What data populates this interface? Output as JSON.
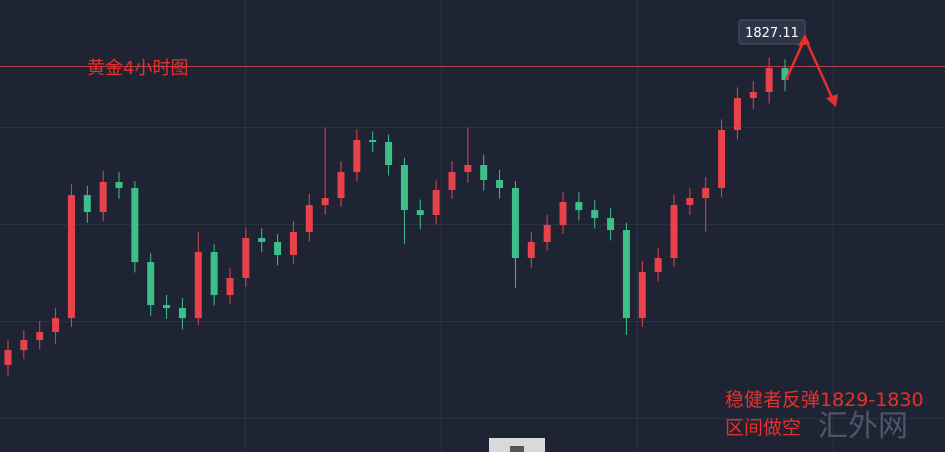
{
  "chart_data": {
    "type": "candlestick",
    "title": "黄金4小时图",
    "open": [
      1789.85,
      1791.72,
      1792.97,
      1793.97,
      1795.71,
      1811.06,
      1808.94,
      1812.69,
      1811.94,
      1802.7,
      1797.34,
      1796.96,
      1795.71,
      1803.95,
      1798.58,
      1800.71,
      1805.7,
      1805.2,
      1803.58,
      1806.45,
      1809.82,
      1810.69,
      1813.93,
      1817.93,
      1817.68,
      1814.81,
      1809.19,
      1808.57,
      1811.69,
      1813.93,
      1814.81,
      1812.94,
      1811.94,
      1803.2,
      1805.2,
      1807.32,
      1810.19,
      1809.19,
      1808.19,
      1806.7,
      1795.71,
      1801.45,
      1803.2,
      1809.82,
      1810.69,
      1811.94,
      1819.18,
      1823.17,
      1823.92,
      1826.91
    ],
    "high": [
      1793.0,
      1794.2,
      1795.3,
      1797.0,
      1812.4,
      1812.2,
      1814.1,
      1813.9,
      1812.8,
      1803.8,
      1798.6,
      1798.2,
      1806.5,
      1804.9,
      1802.0,
      1807.0,
      1806.9,
      1806.2,
      1807.8,
      1811.2,
      1819.5,
      1815.3,
      1819.3,
      1819.0,
      1818.6,
      1815.7,
      1810.5,
      1813.0,
      1815.3,
      1819.5,
      1816.1,
      1814.2,
      1812.8,
      1806.5,
      1808.6,
      1811.5,
      1811.4,
      1810.4,
      1809.4,
      1807.6,
      1802.8,
      1804.5,
      1811.1,
      1812.0,
      1813.3,
      1820.5,
      1824.5,
      1825.3,
      1828.2,
      1828.0
    ],
    "low": [
      1788.5,
      1790.6,
      1791.8,
      1792.5,
      1794.6,
      1807.6,
      1807.8,
      1810.6,
      1801.4,
      1796.0,
      1795.6,
      1794.3,
      1794.8,
      1797.3,
      1797.5,
      1799.6,
      1803.9,
      1802.3,
      1802.5,
      1805.3,
      1808.6,
      1809.6,
      1812.8,
      1816.4,
      1813.5,
      1805.0,
      1806.8,
      1807.4,
      1810.6,
      1812.6,
      1811.6,
      1810.6,
      1799.5,
      1802.0,
      1804.1,
      1806.2,
      1807.9,
      1806.9,
      1805.4,
      1793.6,
      1794.6,
      1800.3,
      1802.1,
      1808.6,
      1806.5,
      1810.8,
      1818.0,
      1821.8,
      1822.5,
      1824.0
    ],
    "close": [
      1791.72,
      1792.97,
      1793.97,
      1795.71,
      1811.06,
      1808.94,
      1812.69,
      1811.94,
      1802.7,
      1797.34,
      1796.96,
      1795.71,
      1803.95,
      1798.58,
      1800.71,
      1805.7,
      1805.2,
      1803.58,
      1806.45,
      1809.82,
      1810.69,
      1813.93,
      1817.93,
      1817.68,
      1814.81,
      1809.19,
      1808.57,
      1811.69,
      1813.93,
      1814.81,
      1812.94,
      1811.94,
      1803.2,
      1805.2,
      1807.32,
      1810.19,
      1809.19,
      1808.19,
      1806.7,
      1795.71,
      1801.45,
      1803.2,
      1809.82,
      1810.69,
      1811.94,
      1819.18,
      1823.17,
      1823.92,
      1826.91,
      1825.42
    ],
    "up_color": "#e8424b",
    "down_color": "#3dbf8a",
    "ylim": [
      1779,
      1835.4
    ],
    "price_line": 1827.11,
    "price_line_color": "#b0444a",
    "annotation": [
      "稳健者反弹1829-1830",
      "区间做空"
    ],
    "watermark": "汇外网"
  }
}
